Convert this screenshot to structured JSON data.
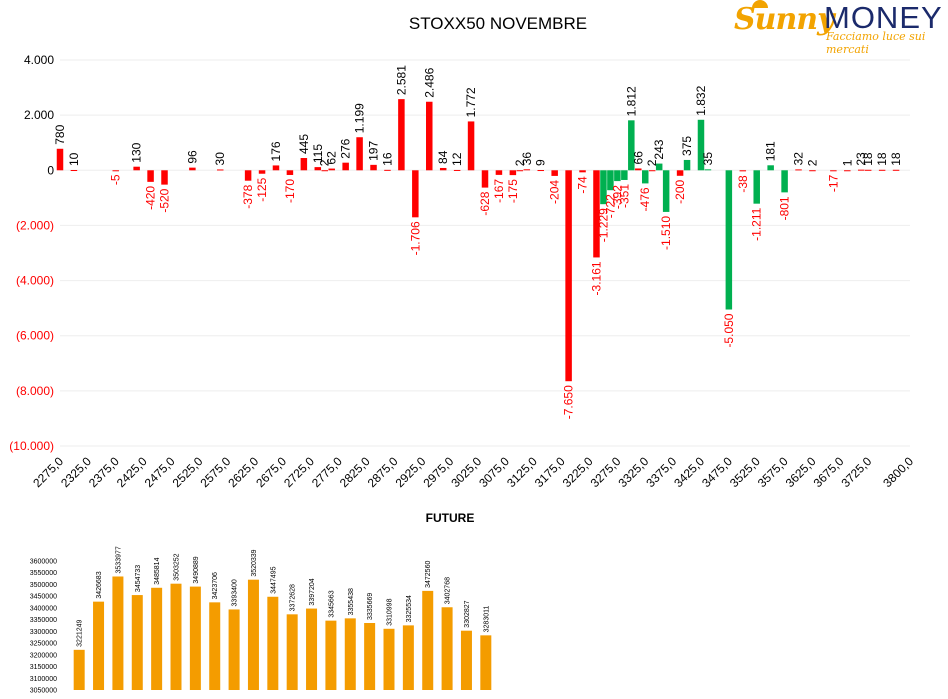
{
  "logo": {
    "brand_word1": "Sunny",
    "brand_word2": "MONEY",
    "tagline": "Facciamo luce sui mercati"
  },
  "colors": {
    "positive": "#00b050",
    "negative": "#ff0000",
    "future": "#f49c00",
    "text": "#000000",
    "grid": "#eeeeee"
  },
  "chart_data": [
    {
      "type": "bar",
      "title": "STOXX50 NOVEMBRE",
      "xlabel": "",
      "ylabel": "",
      "ylim": [
        -10000,
        4000
      ],
      "y_ticks": [
        4000,
        2000,
        0,
        -2000,
        -4000,
        -6000,
        -8000,
        -10000
      ],
      "y_tick_labels": [
        "4.000",
        "2.000",
        "0",
        "(2.000)",
        "(4.000)",
        "(6.000)",
        "(8.000)",
        "(10.000)"
      ],
      "categories": [
        "2275,0",
        "2325,0",
        "2375,0",
        "2425,0",
        "2475,0",
        "2525,0",
        "2575,0",
        "2625,0",
        "2675,0",
        "2725,0",
        "2775,0",
        "2825,0",
        "2875,0",
        "2925,0",
        "2975,0",
        "3025,0",
        "3075,0",
        "3125,0",
        "3175,0",
        "3225,0",
        "3275,0",
        "3325,0",
        "3375,0",
        "3425,0",
        "3475,0",
        "3525,0",
        "3575,0",
        "3625,0",
        "3675,0",
        "3725,0",
        "3800,0"
      ],
      "series": [
        {
          "values": [
            {
              "x": 2275,
              "v": 780,
              "label": "780"
            },
            {
              "x": 2300,
              "v": 10,
              "label": "10"
            },
            {
              "x": 2375,
              "v": -5,
              "label": "-5"
            },
            {
              "x": 2412.5,
              "v": 130,
              "label": "130"
            },
            {
              "x": 2437.5,
              "v": -420,
              "label": "-420"
            },
            {
              "x": 2462.5,
              "v": -520,
              "label": "-520"
            },
            {
              "x": 2512.5,
              "v": 96,
              "label": "96"
            },
            {
              "x": 2562.5,
              "v": 30,
              "label": "30"
            },
            {
              "x": 2612.5,
              "v": -378,
              "label": "-378"
            },
            {
              "x": 2637.5,
              "v": -125,
              "label": "-125"
            },
            {
              "x": 2662.5,
              "v": 176,
              "label": "176"
            },
            {
              "x": 2687.5,
              "v": -170,
              "label": "-170"
            },
            {
              "x": 2712.5,
              "v": 445,
              "label": "445"
            },
            {
              "x": 2737.5,
              "v": 115,
              "label": "115"
            },
            {
              "x": 2750,
              "v": 2,
              "label": "2"
            },
            {
              "x": 2762.5,
              "v": 62,
              "label": "62"
            },
            {
              "x": 2787.5,
              "v": 276,
              "label": "276"
            },
            {
              "x": 2812.5,
              "v": 1199,
              "label": "1.199"
            },
            {
              "x": 2837.5,
              "v": 197,
              "label": "197"
            },
            {
              "x": 2862.5,
              "v": 16,
              "label": "16"
            },
            {
              "x": 2887.5,
              "v": 2581,
              "label": "2.581"
            },
            {
              "x": 2912.5,
              "v": -1706,
              "label": "-1.706"
            },
            {
              "x": 2937.5,
              "v": 2486,
              "label": "2.486"
            },
            {
              "x": 2962.5,
              "v": 84,
              "label": "84"
            },
            {
              "x": 2987.5,
              "v": 12,
              "label": "12"
            },
            {
              "x": 3012.5,
              "v": 1772,
              "label": "1.772"
            },
            {
              "x": 3037.5,
              "v": -628,
              "label": "-628"
            },
            {
              "x": 3062.5,
              "v": -167,
              "label": "-167"
            },
            {
              "x": 3087.5,
              "v": -175,
              "label": "-175"
            },
            {
              "x": 3100,
              "v": 2,
              "label": "2"
            },
            {
              "x": 3112.5,
              "v": 36,
              "label": "36"
            },
            {
              "x": 3137.5,
              "v": 9,
              "label": "9"
            },
            {
              "x": 3162.5,
              "v": -204,
              "label": "-204"
            },
            {
              "x": 3187.5,
              "v": -7650,
              "label": "-7.650"
            },
            {
              "x": 3212.5,
              "v": -74,
              "label": "-74"
            },
            {
              "x": 3237.5,
              "v": -3161,
              "label": "-3.161"
            },
            {
              "x": 3250,
              "v": -1229,
              "label": "-1.229"
            },
            {
              "x": 3262.5,
              "v": -722,
              "label": "-722"
            },
            {
              "x": 3275,
              "v": -392,
              "label": "-392"
            },
            {
              "x": 3287.5,
              "v": -351,
              "label": "-351"
            },
            {
              "x": 3300,
              "v": 1812,
              "label": "1.812"
            },
            {
              "x": 3312.5,
              "v": 66,
              "label": "66"
            },
            {
              "x": 3325,
              "v": -476,
              "label": "-476"
            },
            {
              "x": 3337.5,
              "v": 2,
              "label": "2"
            },
            {
              "x": 3350,
              "v": 243,
              "label": "243"
            },
            {
              "x": 3362.5,
              "v": -1510,
              "label": "-1.510"
            },
            {
              "x": 3387.5,
              "v": -200,
              "label": "-200"
            },
            {
              "x": 3400,
              "v": 375,
              "label": "375"
            },
            {
              "x": 3425,
              "v": 1832,
              "label": "1.832"
            },
            {
              "x": 3437.5,
              "v": 35,
              "label": "35"
            },
            {
              "x": 3475,
              "v": -5050,
              "label": "-5.050"
            },
            {
              "x": 3500,
              "v": -38,
              "label": "-38"
            },
            {
              "x": 3525,
              "v": -1211,
              "label": "-1.211"
            },
            {
              "x": 3550,
              "v": 181,
              "label": "181"
            },
            {
              "x": 3575,
              "v": -801,
              "label": "-801"
            },
            {
              "x": 3600,
              "v": 32,
              "label": "32"
            },
            {
              "x": 3625,
              "v": 2,
              "label": "2"
            },
            {
              "x": 3662.5,
              "v": -17,
              "label": "-17"
            },
            {
              "x": 3687.5,
              "v": 1,
              "label": "1"
            },
            {
              "x": 3712.5,
              "v": 23,
              "label": "23"
            },
            {
              "x": 3725,
              "v": 18,
              "label": "18"
            },
            {
              "x": 3750,
              "v": 18,
              "label": "18"
            },
            {
              "x": 3775,
              "v": 18,
              "label": "18"
            }
          ]
        }
      ]
    },
    {
      "type": "bar",
      "title": "FUTURE",
      "xlabel": "",
      "ylabel": "",
      "ylim": [
        3050000,
        3600000
      ],
      "y_ticks": [
        3600000,
        3550000,
        3500000,
        3450000,
        3400000,
        3350000,
        3300000,
        3250000,
        3200000,
        3150000,
        3100000,
        3050000
      ],
      "y_tick_labels": [
        "3600000",
        "3550000",
        "3500000",
        "3450000",
        "3400000",
        "3350000",
        "3300000",
        "3250000",
        "3200000",
        "3150000",
        "3100000",
        "3050000"
      ],
      "values": [
        3221249,
        3426683,
        3533977,
        3454733,
        3485814,
        3503252,
        3490889,
        3423706,
        3393400,
        3520339,
        3447495,
        3372628,
        3397204,
        3345663,
        3355438,
        3335669,
        3310998,
        3325534,
        3472560,
        3402768,
        3302827,
        3283011
      ],
      "value_labels": [
        "3221249",
        "3426683",
        "3533977",
        "3454733",
        "3485814",
        "3503252",
        "3490889",
        "3423706",
        "3393400",
        "3520339",
        "3447495",
        "3372628",
        "3397204",
        "3345663",
        "3355438",
        "3335669",
        "3310998",
        "3325534",
        "3472560",
        "3402768",
        "3302827",
        "3283011"
      ]
    }
  ]
}
